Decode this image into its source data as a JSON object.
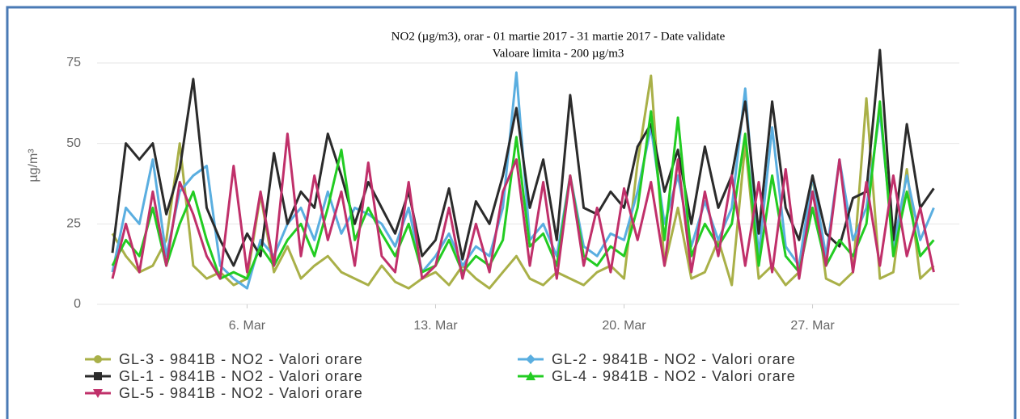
{
  "chart_data": {
    "type": "line",
    "title": "NO2 (µg/m3), orar - 01 martie 2017 - 31 martie 2017 - Date validate",
    "subtitle": "Valoare limita - 200 µg/m3",
    "y_label": "µg/m³",
    "x": [
      1,
      1.5,
      2,
      2.5,
      3,
      3.5,
      4,
      4.5,
      5,
      5.5,
      6,
      6.5,
      7,
      7.5,
      8,
      8.5,
      9,
      9.5,
      10,
      10.5,
      11,
      11.5,
      12,
      12.5,
      13,
      13.5,
      14,
      14.5,
      15,
      15.5,
      16,
      16.5,
      17,
      17.5,
      18,
      18.5,
      19,
      19.5,
      20,
      20.5,
      21,
      21.5,
      22,
      22.5,
      23,
      23.5,
      24,
      24.5,
      25,
      25.5,
      26,
      26.5,
      27,
      27.5,
      28,
      28.5,
      29,
      29.5,
      30,
      30.5,
      31,
      31.5
    ],
    "xlim": [
      1,
      32
    ],
    "xticks": [
      {
        "value": 6,
        "label": "6. Mar"
      },
      {
        "value": 13,
        "label": "13. Mar"
      },
      {
        "value": 20,
        "label": "20. Mar"
      },
      {
        "value": 27,
        "label": "27. Mar"
      }
    ],
    "ylim": [
      0,
      80
    ],
    "yticks": [
      0,
      25,
      50,
      75
    ],
    "grid": true,
    "series": [
      {
        "name": "GL-3 - 9841B - NO2 - Valori orare",
        "color": "#a9b048",
        "marker": "circle",
        "values": [
          22,
          15,
          10,
          12,
          20,
          50,
          12,
          8,
          10,
          6,
          8,
          34,
          10,
          18,
          8,
          12,
          15,
          10,
          8,
          6,
          12,
          7,
          5,
          8,
          10,
          6,
          12,
          8,
          5,
          10,
          15,
          8,
          6,
          10,
          8,
          6,
          10,
          12,
          8,
          44,
          71,
          12,
          30,
          8,
          10,
          20,
          6,
          50,
          8,
          12,
          6,
          10,
          40,
          8,
          6,
          10,
          64,
          8,
          10,
          42,
          8,
          12
        ]
      },
      {
        "name": "GL-2 - 9841B - NO2 - Valori orare",
        "color": "#5aaee0",
        "marker": "diamond",
        "values": [
          10,
          30,
          25,
          45,
          15,
          35,
          40,
          43,
          12,
          8,
          5,
          20,
          15,
          25,
          30,
          20,
          35,
          22,
          30,
          28,
          25,
          18,
          30,
          10,
          15,
          22,
          12,
          18,
          15,
          30,
          72,
          20,
          25,
          15,
          40,
          18,
          15,
          22,
          20,
          35,
          55,
          25,
          40,
          18,
          32,
          20,
          30,
          67,
          15,
          55,
          18,
          12,
          40,
          15,
          45,
          20,
          30,
          60,
          18,
          40,
          20,
          30
        ]
      },
      {
        "name": "GL-1 - 9841B - NO2 - Valori orare",
        "color": "#2b2b2b",
        "marker": "square",
        "values": [
          16,
          50,
          45,
          50,
          28,
          42,
          70,
          30,
          20,
          12,
          22,
          15,
          47,
          25,
          35,
          30,
          53,
          40,
          25,
          38,
          30,
          22,
          35,
          15,
          20,
          36,
          14,
          32,
          25,
          40,
          61,
          30,
          45,
          20,
          65,
          30,
          28,
          35,
          30,
          49,
          56,
          35,
          48,
          25,
          49,
          30,
          40,
          63,
          22,
          63,
          30,
          20,
          40,
          22,
          18,
          33,
          35,
          79,
          20,
          56,
          30,
          36
        ]
      },
      {
        "name": "GL-4 - 9841B - NO2 - Valori orare",
        "color": "#22cc22",
        "marker": "triangle",
        "values": [
          12,
          20,
          15,
          30,
          12,
          25,
          35,
          20,
          8,
          10,
          8,
          18,
          12,
          20,
          25,
          15,
          30,
          48,
          20,
          30,
          22,
          15,
          25,
          10,
          12,
          20,
          10,
          15,
          12,
          20,
          52,
          18,
          22,
          12,
          40,
          15,
          12,
          18,
          15,
          30,
          60,
          20,
          58,
          15,
          25,
          18,
          25,
          53,
          12,
          40,
          15,
          10,
          30,
          12,
          20,
          15,
          25,
          63,
          15,
          35,
          15,
          20
        ]
      },
      {
        "name": "GL-5 - 9841B - NO2 - Valori orare",
        "color": "#c0306a",
        "marker": "triangle-down",
        "values": [
          8,
          25,
          10,
          35,
          12,
          38,
          28,
          15,
          8,
          43,
          10,
          35,
          12,
          53,
          15,
          40,
          20,
          35,
          12,
          44,
          15,
          10,
          38,
          8,
          12,
          30,
          8,
          25,
          10,
          35,
          45,
          12,
          38,
          8,
          40,
          12,
          30,
          10,
          36,
          20,
          38,
          12,
          45,
          10,
          35,
          15,
          40,
          12,
          38,
          10,
          42,
          8,
          35,
          12,
          45,
          10,
          38,
          12,
          40,
          15,
          30,
          10
        ]
      }
    ]
  }
}
